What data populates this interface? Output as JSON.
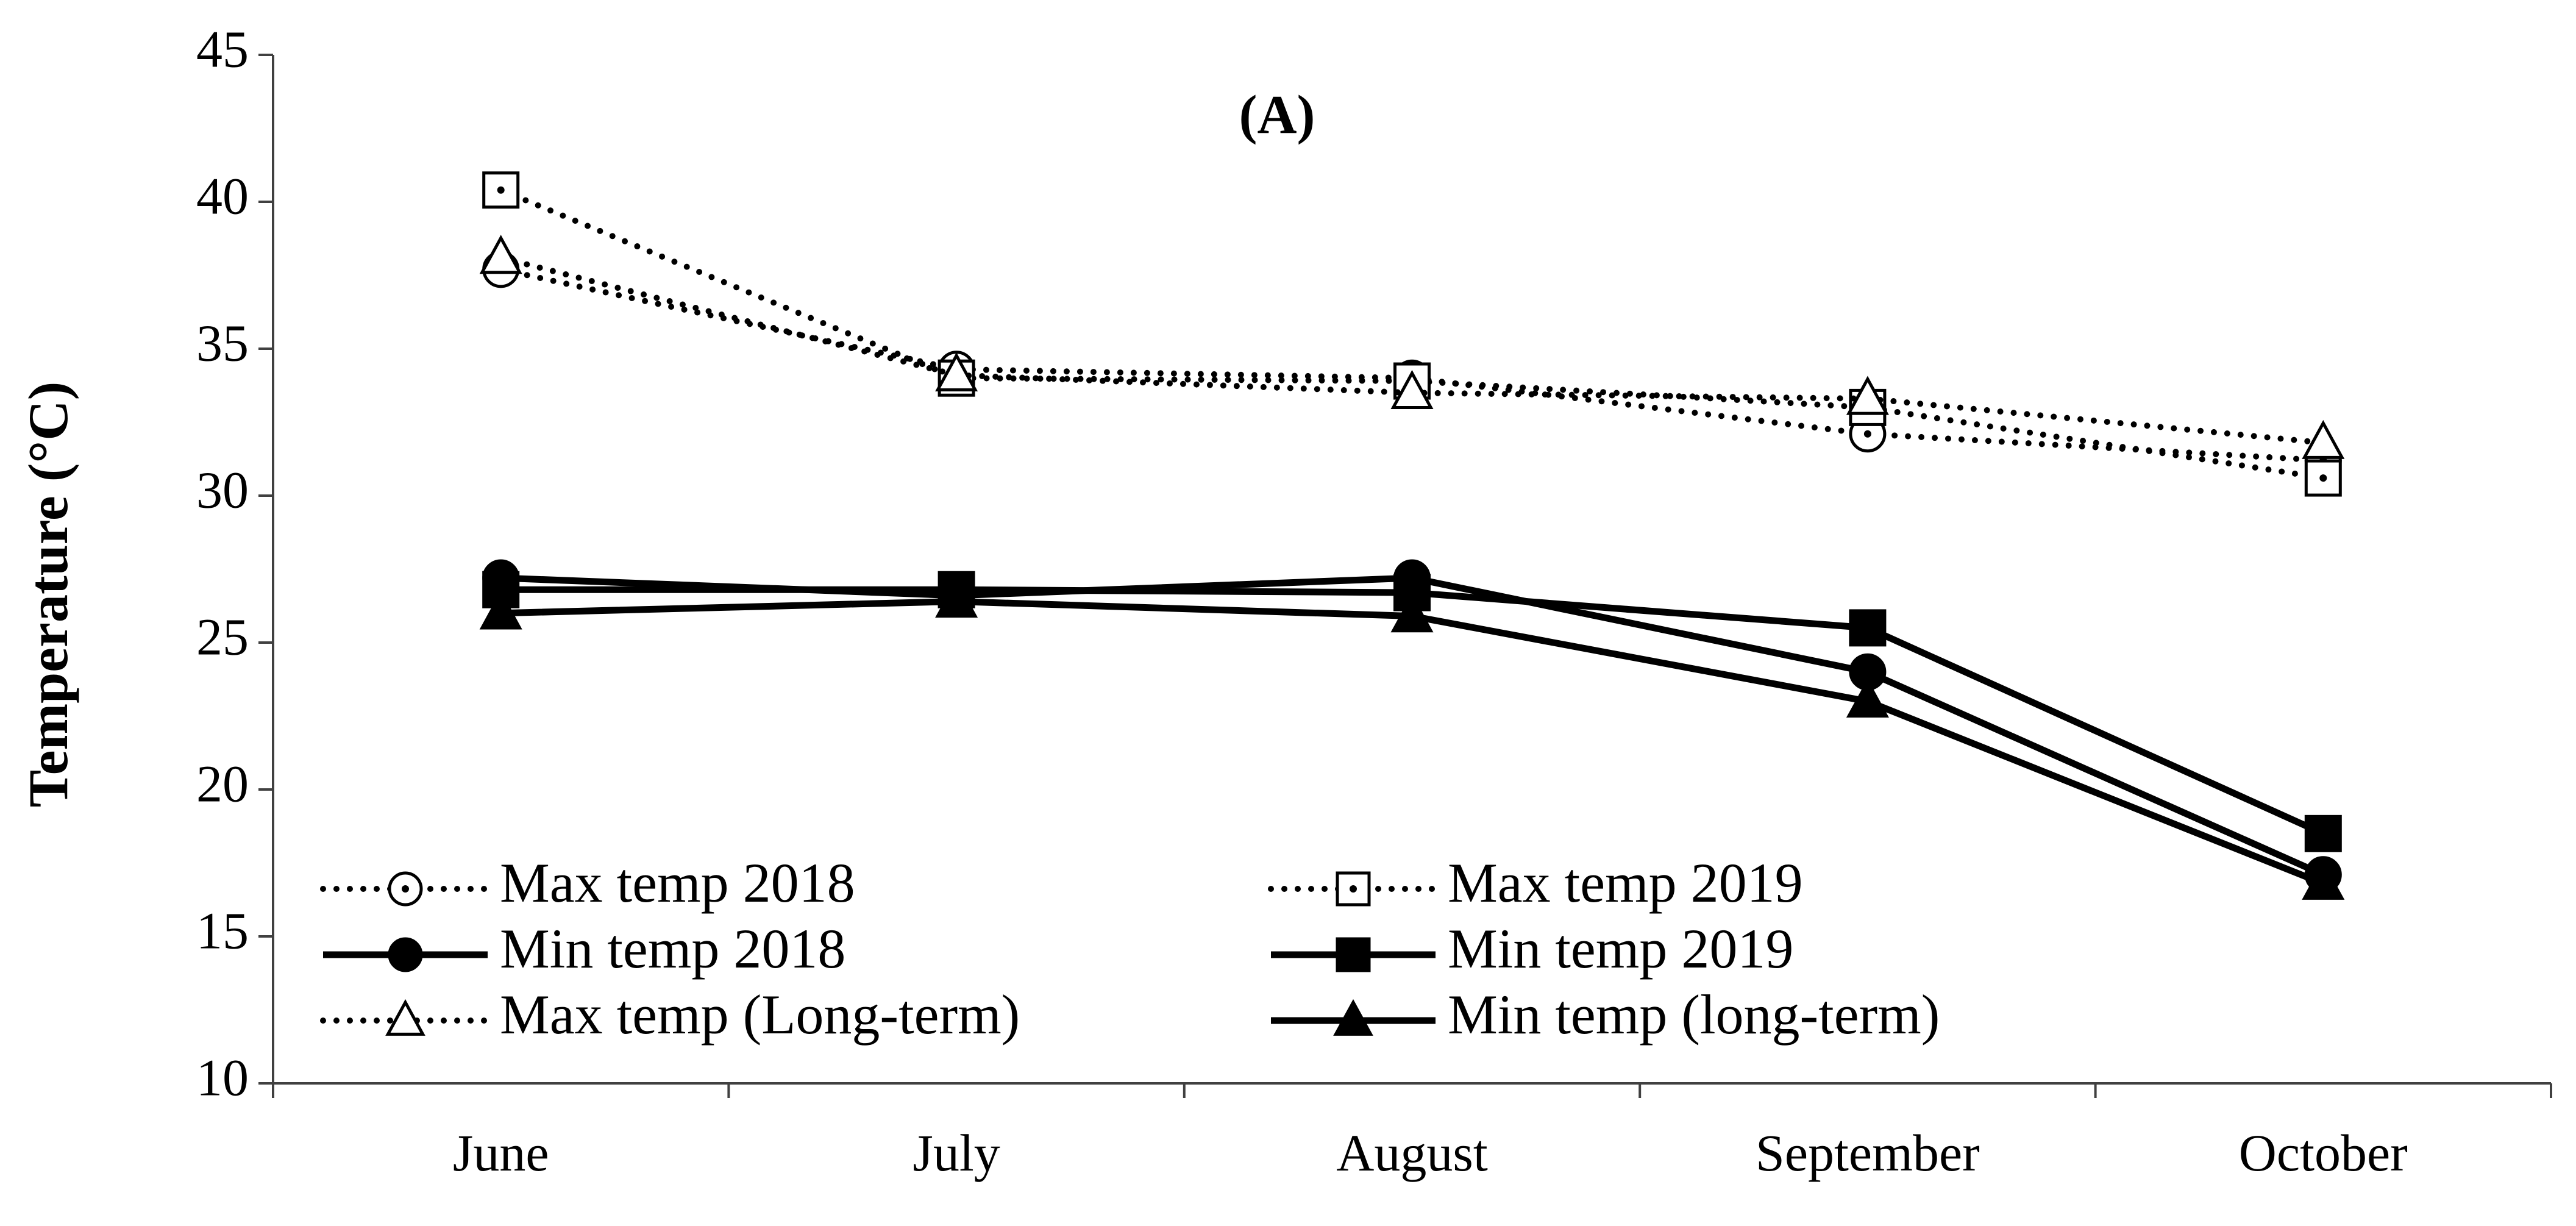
{
  "chart_data": {
    "type": "line",
    "title": "(A)",
    "xlabel": "",
    "ylabel": "Temperature (°C)",
    "categories": [
      "June",
      "July",
      "August",
      "September",
      "October"
    ],
    "ylim": [
      10,
      45
    ],
    "yticks": [
      10,
      15,
      20,
      25,
      30,
      35,
      40,
      45
    ],
    "grid": false,
    "legend_position": "bottom-left",
    "series": [
      {
        "name": "Max temp 2018",
        "values": [
          37.7,
          34.3,
          34.0,
          32.1,
          31.2
        ],
        "line": "dotted",
        "marker": "circle",
        "filled": false
      },
      {
        "name": "Max temp 2019",
        "values": [
          40.4,
          34.0,
          33.9,
          33.0,
          30.6
        ],
        "line": "dotted",
        "marker": "square",
        "filled": false
      },
      {
        "name": "Min temp 2018",
        "values": [
          27.2,
          26.6,
          27.2,
          24.0,
          17.1
        ],
        "line": "solid",
        "marker": "circle",
        "filled": true
      },
      {
        "name": "Min temp 2019",
        "values": [
          26.8,
          26.8,
          26.7,
          25.5,
          18.5
        ],
        "line": "solid",
        "marker": "square",
        "filled": true
      },
      {
        "name": "Max temp (Long-term)",
        "values": [
          38.1,
          34.1,
          33.5,
          33.3,
          31.8
        ],
        "line": "dotted",
        "marker": "triangle",
        "filled": false
      },
      {
        "name": "Min temp (long-term)",
        "values": [
          26.0,
          26.4,
          25.9,
          23.0,
          16.8
        ],
        "line": "solid",
        "marker": "triangle",
        "filled": true
      }
    ]
  }
}
